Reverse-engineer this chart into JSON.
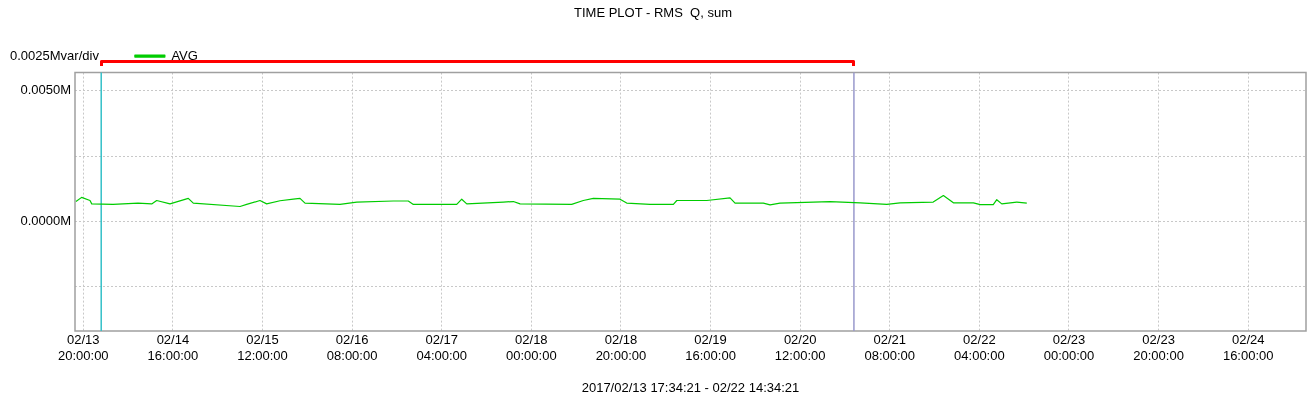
{
  "chart_data": {
    "type": "line",
    "title": "TIME PLOT - RMS  Q, sum",
    "xlabel": "2017/02/13 17:34:21 - 02/22 14:34:21",
    "annotations": [
      "0.0025Mvar/div"
    ],
    "xlim": [
      "2017-02-13T18:09",
      "2017-02-25T04:54"
    ],
    "xticks": [
      {
        "value": "2017-02-13T20:00",
        "label": "02/13 20:00:00"
      },
      {
        "value": "2017-02-14T16:00",
        "label": "02/14 16:00:00"
      },
      {
        "value": "2017-02-15T12:00",
        "label": "02/15 12:00:00"
      },
      {
        "value": "2017-02-16T08:00",
        "label": "02/16 08:00:00"
      },
      {
        "value": "2017-02-17T04:00",
        "label": "02/17 04:00:00"
      },
      {
        "value": "2017-02-18T00:00",
        "label": "02/18 00:00:00"
      },
      {
        "value": "2017-02-18T20:00",
        "label": "02/18 20:00:00"
      },
      {
        "value": "2017-02-19T16:00",
        "label": "02/19 16:00:00"
      },
      {
        "value": "2017-02-20T12:00",
        "label": "02/20 12:00:00"
      },
      {
        "value": "2017-02-21T08:00",
        "label": "02/21 08:00:00"
      },
      {
        "value": "2017-02-22T04:00",
        "label": "02/22 04:00:00"
      },
      {
        "value": "2017-02-23T00:00",
        "label": "02/23 00:00:00"
      },
      {
        "value": "2017-02-23T20:00",
        "label": "02/23 20:00:00"
      },
      {
        "value": "2017-02-24T16:00",
        "label": "02/24 16:00:00"
      }
    ],
    "ylim": [
      -0.0042,
      0.0057
    ],
    "yticks": [
      {
        "value": -0.0025,
        "label": null
      },
      {
        "value": 0,
        "label": "0.0000M"
      },
      {
        "value": 0.0025,
        "label": null
      },
      {
        "value": 0.005,
        "label": "0.0050M"
      }
    ],
    "grid": true,
    "legend": "top left",
    "marker": "none",
    "ref_lines": [
      {
        "axis": "x",
        "value": "2017-02-14T00:00",
        "color": "#33c0c8"
      },
      {
        "axis": "x",
        "value": "2017-02-21T00:00",
        "color": "#9999cc"
      }
    ],
    "series": [
      {
        "name": "AVG",
        "color": "#00cc00",
        "x": [
          "2017-02-13T18:22",
          "2017-02-13T19:38",
          "2017-02-13T21:30",
          "2017-02-13T21:53",
          "2017-02-14T02:38",
          "2017-02-14T08:13",
          "2017-02-14T11:16",
          "2017-02-14T12:23",
          "2017-02-14T15:21",
          "2017-02-14T19:26",
          "2017-02-14T20:33",
          "2017-02-15T06:59",
          "2017-02-15T08:28",
          "2017-02-15T11:26",
          "2017-02-15T12:56",
          "2017-02-15T15:54",
          "2017-02-15T18:53",
          "2017-02-15T20:22",
          "2017-02-15T21:29",
          "2017-02-16T05:18",
          "2017-02-16T09:02",
          "2017-02-16T17:12",
          "2017-02-16T20:32",
          "2017-02-16T21:40",
          "2017-02-17T07:21",
          "2017-02-17T08:28",
          "2017-02-17T09:35",
          "2017-02-17T17:45",
          "2017-02-17T19:59",
          "2017-02-17T21:29",
          "2017-02-18T09:00",
          "2017-02-18T11:36",
          "2017-02-18T13:50",
          "2017-02-18T19:48",
          "2017-02-18T21:17",
          "2017-02-19T02:30",
          "2017-02-19T07:42",
          "2017-02-19T08:28",
          "2017-02-19T15:09",
          "2017-02-19T20:21",
          "2017-02-19T21:28",
          "2017-02-20T03:47",
          "2017-02-20T05:17",
          "2017-02-20T07:30",
          "2017-02-20T18:40",
          "2017-02-21T01:24",
          "2017-02-21T07:20",
          "2017-02-21T10:18",
          "2017-02-21T17:42",
          "2017-02-21T19:58",
          "2017-02-21T22:12",
          "2017-02-22T02:40",
          "2017-02-22T04:12",
          "2017-02-22T07:06",
          "2017-02-22T07:53",
          "2017-02-22T09:00",
          "2017-02-22T12:21",
          "2017-02-22T14:35"
        ],
        "values": [
          0.00076,
          0.00092,
          0.0008,
          0.00067,
          0.00065,
          0.0007,
          0.00067,
          0.0008,
          0.00067,
          0.00088,
          0.0007,
          0.00057,
          0.00065,
          0.0008,
          0.00067,
          0.00079,
          0.00085,
          0.00088,
          0.0007,
          0.00065,
          0.00074,
          0.00078,
          0.00078,
          0.00065,
          0.00065,
          0.00085,
          0.00067,
          0.00074,
          0.00076,
          0.00067,
          0.00065,
          0.0008,
          0.00088,
          0.00085,
          0.0007,
          0.00065,
          0.00065,
          0.0008,
          0.0008,
          0.0009,
          0.0007,
          0.0007,
          0.00063,
          0.0007,
          0.00076,
          0.00071,
          0.00065,
          0.00071,
          0.00074,
          0.00099,
          0.00071,
          0.00071,
          0.00064,
          0.00064,
          0.00083,
          0.00067,
          0.00074,
          0.0007
        ]
      }
    ]
  }
}
